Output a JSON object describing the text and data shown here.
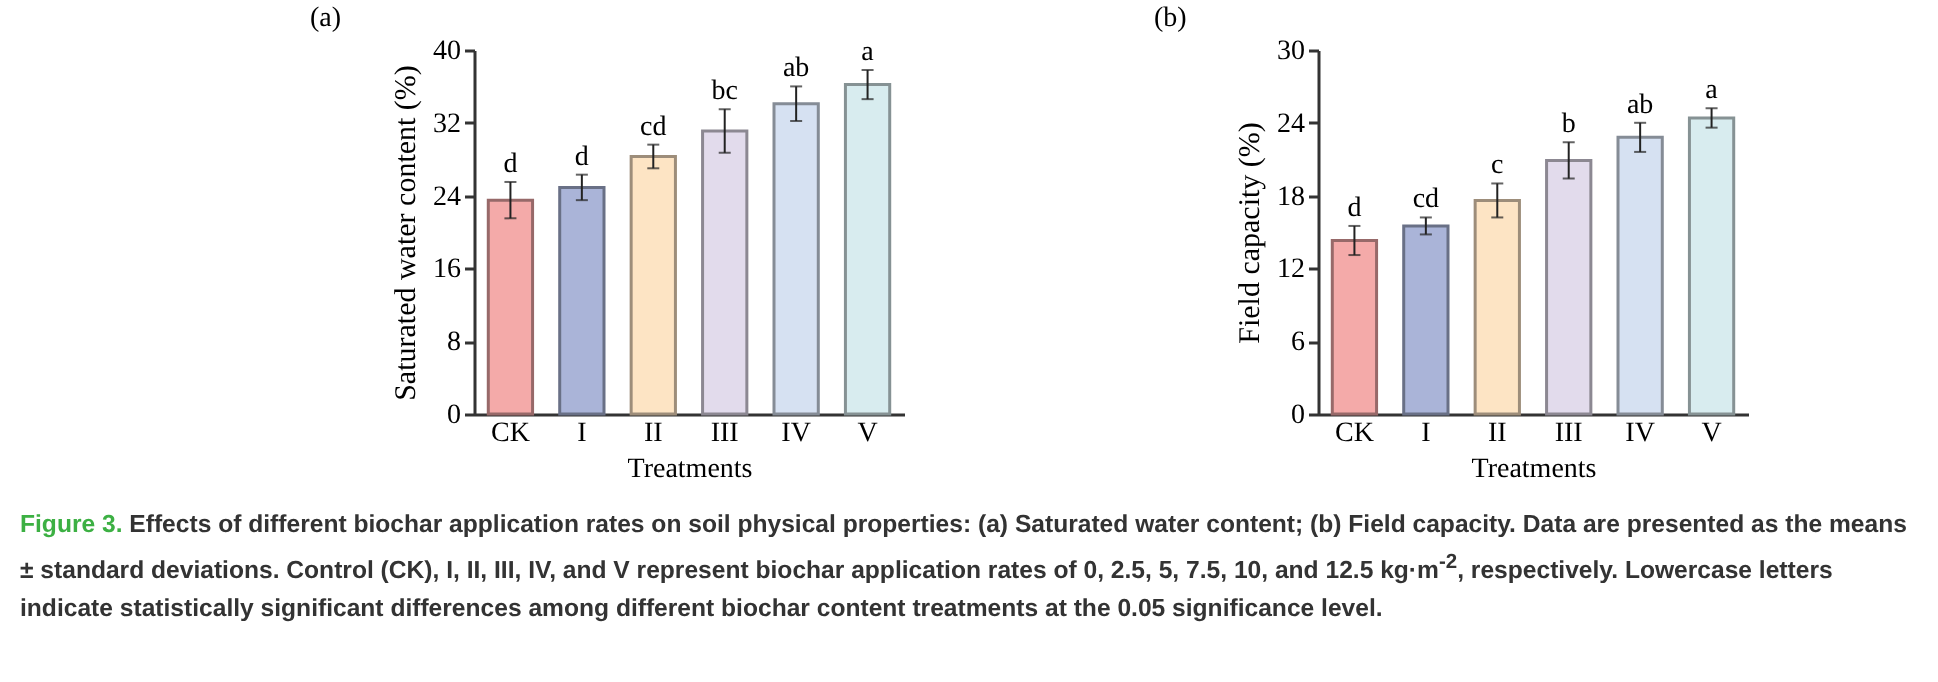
{
  "chart_data": [
    {
      "type": "bar",
      "title": "(a)",
      "xlabel": "Treatments",
      "ylabel": "Saturated water content (%)",
      "categories": [
        "CK",
        "I",
        "II",
        "III",
        "IV",
        "V"
      ],
      "values": [
        23.5,
        24.9,
        28.3,
        31.1,
        34.1,
        36.2
      ],
      "errors": [
        2.0,
        1.4,
        1.3,
        2.4,
        1.9,
        1.6
      ],
      "colors": [
        "#f4aaa9",
        "#aab4d8",
        "#fde4c4",
        "#e2dbec",
        "#d6e1f2",
        "#d8ecef"
      ],
      "ylim": [
        0,
        40
      ],
      "yticks": [
        0,
        8,
        16,
        24,
        32,
        40
      ],
      "annotations": [
        {
          "text": "d",
          "x": "CK",
          "y": 25.5
        },
        {
          "text": "d",
          "x": "I",
          "y": 26.3
        },
        {
          "text": "cd",
          "x": "II",
          "y": 29.6
        },
        {
          "text": "bc",
          "x": "III",
          "y": 33.5
        },
        {
          "text": "ab",
          "x": "IV",
          "y": 36.0
        },
        {
          "text": "a",
          "x": "V",
          "y": 37.8
        },
        "Figure 3. Effects of different biochar application rates on soil physical properties: (a) Saturated water content; (b) Field capacity. Data are presented as the means ± standard deviations. Control (CK), I, II, III, IV, and V represent biochar application rates of 0, 2.5, 5, 7.5, 10, and 12.5 kg·m$^{-2}$, respectively. Lowercase letters indicate statistically significant differences among different biochar content treatments at the 0.05 significance level."
      ]
    },
    {
      "type": "bar",
      "title": "(b)",
      "xlabel": "Treatments",
      "ylabel": "Field capacity (%)",
      "categories": [
        "CK",
        "I",
        "II",
        "III",
        "IV",
        "V"
      ],
      "values": [
        14.3,
        15.5,
        17.6,
        20.9,
        22.8,
        24.4
      ],
      "errors": [
        1.2,
        0.7,
        1.4,
        1.5,
        1.2,
        0.8
      ],
      "colors": [
        "#f4aaa9",
        "#aab4d8",
        "#fde4c4",
        "#e2dbec",
        "#d6e1f2",
        "#d8ecef"
      ],
      "ylim": [
        0,
        30
      ],
      "yticks": [
        0,
        6,
        12,
        18,
        24,
        30
      ],
      "annotations": [
        {
          "text": "d",
          "x": "CK",
          "y": 15.5
        },
        {
          "text": "cd",
          "x": "I",
          "y": 16.2
        },
        {
          "text": "c",
          "x": "II",
          "y": 19.0
        },
        {
          "text": "b",
          "x": "III",
          "y": 22.4
        },
        {
          "text": "ab",
          "x": "IV",
          "y": 24.0
        },
        {
          "text": "a",
          "x": "V",
          "y": 25.2
        }
      ]
    }
  ]
}
